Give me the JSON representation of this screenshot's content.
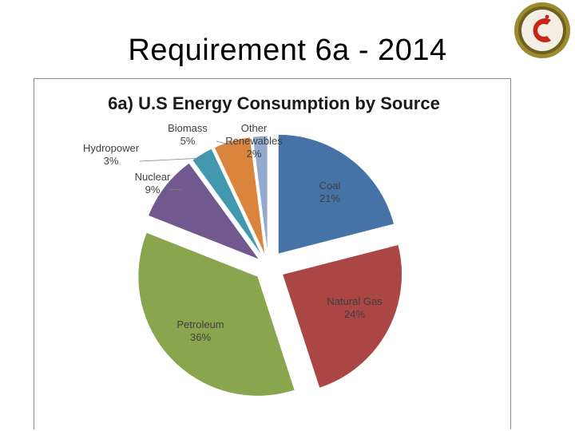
{
  "slide": {
    "title": "Requirement 6a - 2014"
  },
  "badge": {
    "icon": "merit-badge-icon",
    "letter": "C",
    "colors": {
      "ring": "#9b8a2e",
      "field": "#f3f0e3",
      "letter": "#c82418"
    }
  },
  "chart_data": {
    "type": "pie",
    "title": "6a) U.S Energy Consumption by Source",
    "exploded": true,
    "slices": [
      {
        "name": "Coal",
        "value": 21,
        "label": "21%",
        "color": "#4572a7"
      },
      {
        "name": "Natural Gas",
        "value": 24,
        "label": "24%",
        "color": "#aa4643"
      },
      {
        "name": "Petroleum",
        "value": 36,
        "label": "36%",
        "color": "#89a54e"
      },
      {
        "name": "Nuclear",
        "value": 9,
        "label": "9%",
        "color": "#71588f"
      },
      {
        "name": "Hydropower",
        "value": 3,
        "label": "3%",
        "color": "#4198af"
      },
      {
        "name": "Biomass",
        "value": 5,
        "label": "5%",
        "color": "#db843d"
      },
      {
        "name": "Other Renewables",
        "value": 2,
        "label": "2%",
        "color": "#93a9cf"
      }
    ]
  }
}
